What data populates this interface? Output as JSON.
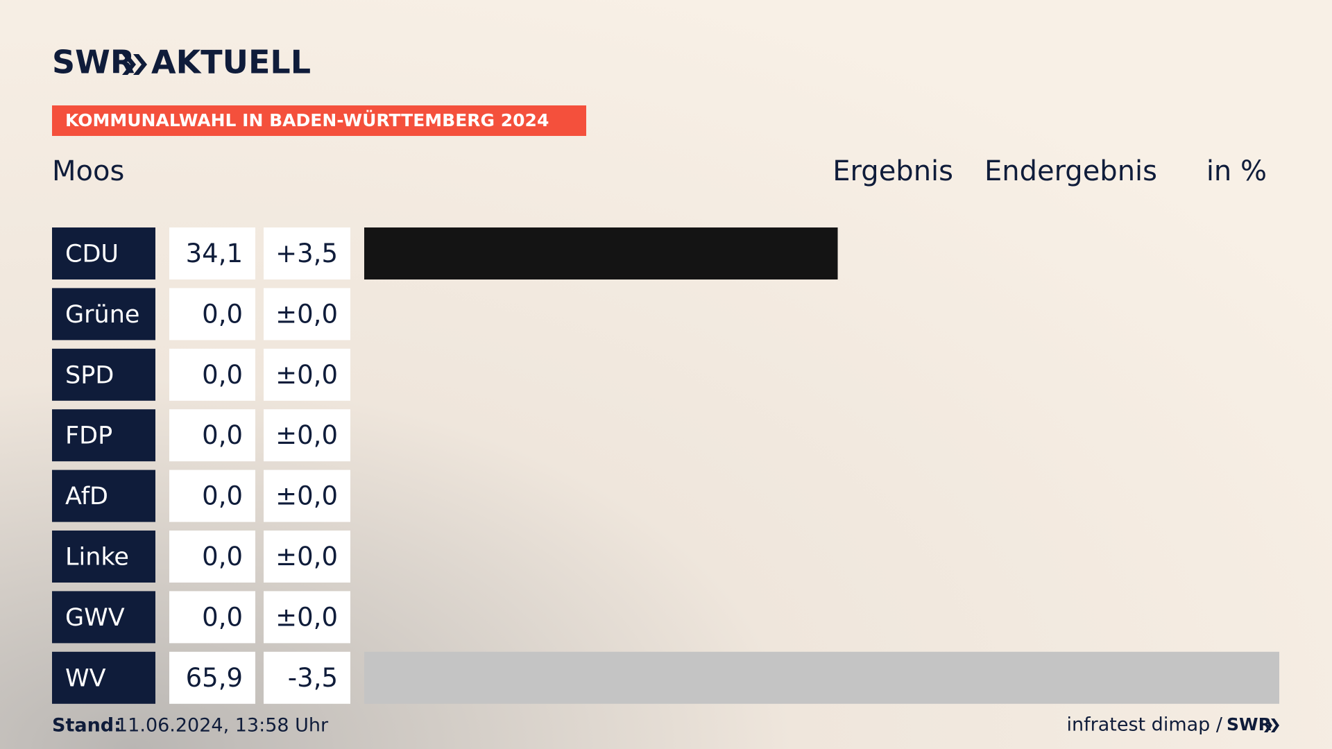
{
  "header": {
    "logo": "SWR",
    "section": "AKTUELL",
    "banner": "KOMMUNALWAHL IN BADEN-WÜRTTEMBERG 2024"
  },
  "chart_data": {
    "type": "bar",
    "title": "Moos",
    "column_headers": [
      "Ergebnis",
      "Endergebnis",
      "in %"
    ],
    "categories": [
      "CDU",
      "Grüne",
      "SPD",
      "FDP",
      "AfD",
      "Linke",
      "GWV",
      "WV"
    ],
    "values": [
      34.1,
      0,
      0,
      0,
      0,
      0,
      0,
      65.9
    ],
    "value_labels": [
      "34,1",
      "0,0",
      "0,0",
      "0,0",
      "0,0",
      "0,0",
      "0,0",
      "65,9"
    ],
    "changes": [
      3.5,
      0,
      0,
      0,
      0,
      0,
      0,
      -3.5
    ],
    "change_labels": [
      "+3,5",
      "±0,0",
      "±0,0",
      "±0,0",
      "±0,0",
      "±0,0",
      "±0,0",
      "-3,5"
    ],
    "colors": [
      "#141414",
      "#1a9e3a",
      "#e3000f",
      "#ffd600",
      "#009ee0",
      "#be3075",
      "#c4c4c4",
      "#c4c4c4"
    ],
    "xlim": [
      0,
      65.9
    ]
  },
  "footer": {
    "stand_label": "Stand:",
    "stand": "11.06.2024, 13:58 Uhr",
    "source": "infratest dimap /",
    "logo": "SWR"
  }
}
